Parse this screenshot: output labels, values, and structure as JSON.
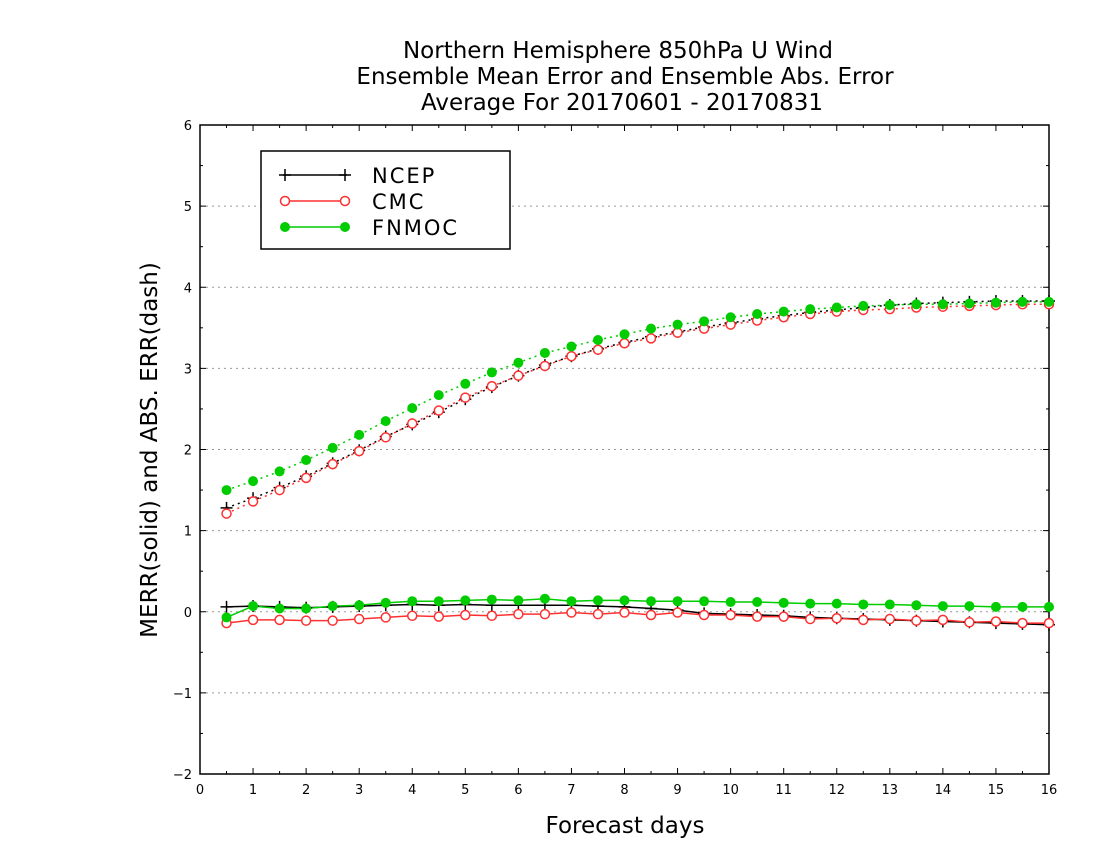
{
  "chart_data": {
    "type": "line",
    "title_lines": [
      "Northern Hemisphere 850hPa U Wind",
      "Ensemble Mean Error and Ensemble Abs. Error",
      "Average For 20170601 - 20170831"
    ],
    "xlabel": "Forecast days",
    "ylabel": "MERR(solid) and ABS. ERR(dash)",
    "xlim": [
      0,
      16
    ],
    "ylim": [
      -2,
      6
    ],
    "x_ticks": [
      "0",
      "1",
      "2",
      "3",
      "4",
      "5",
      "6",
      "7",
      "8",
      "9",
      "10",
      "11",
      "12",
      "13",
      "14",
      "15",
      "16"
    ],
    "y_ticks": [
      "-2",
      "-1",
      "0",
      "1",
      "2",
      "3",
      "4",
      "5",
      "6"
    ],
    "grid": "horizontal dotted",
    "legend_position": "top-left",
    "x": [
      0.5,
      1,
      1.5,
      2,
      2.5,
      3,
      3.5,
      4,
      4.5,
      5,
      5.5,
      6,
      6.5,
      7,
      7.5,
      8,
      8.5,
      9,
      9.5,
      10,
      10.5,
      11,
      11.5,
      12,
      12.5,
      13,
      13.5,
      14,
      14.5,
      15,
      15.5,
      16
    ],
    "series": [
      {
        "name": "NCEP",
        "color": "#000000",
        "marker": "plus",
        "merr": [
          0.06,
          0.07,
          0.06,
          0.05,
          0.06,
          0.07,
          0.08,
          0.09,
          0.08,
          0.09,
          0.08,
          0.08,
          0.08,
          0.08,
          0.07,
          0.06,
          0.04,
          0.02,
          -0.02,
          -0.03,
          -0.04,
          -0.05,
          -0.07,
          -0.08,
          -0.09,
          -0.1,
          -0.11,
          -0.12,
          -0.13,
          -0.14,
          -0.15,
          -0.16
        ],
        "abs_err": [
          1.28,
          1.4,
          1.53,
          1.67,
          1.83,
          1.99,
          2.16,
          2.31,
          2.46,
          2.62,
          2.77,
          2.91,
          3.04,
          3.15,
          3.24,
          3.32,
          3.39,
          3.45,
          3.51,
          3.56,
          3.61,
          3.65,
          3.69,
          3.72,
          3.75,
          3.78,
          3.8,
          3.81,
          3.82,
          3.83,
          3.83,
          3.83
        ]
      },
      {
        "name": "CMC",
        "color": "#ff3030",
        "marker": "open-circle",
        "merr": [
          -0.14,
          -0.1,
          -0.1,
          -0.11,
          -0.11,
          -0.09,
          -0.07,
          -0.05,
          -0.06,
          -0.04,
          -0.05,
          -0.03,
          -0.03,
          -0.01,
          -0.03,
          -0.01,
          -0.04,
          -0.01,
          -0.04,
          -0.04,
          -0.06,
          -0.06,
          -0.09,
          -0.08,
          -0.1,
          -0.09,
          -0.11,
          -0.1,
          -0.13,
          -0.12,
          -0.14,
          -0.14
        ],
        "abs_err": [
          1.21,
          1.36,
          1.5,
          1.65,
          1.82,
          1.98,
          2.15,
          2.32,
          2.48,
          2.64,
          2.78,
          2.91,
          3.03,
          3.15,
          3.23,
          3.31,
          3.37,
          3.44,
          3.49,
          3.54,
          3.59,
          3.63,
          3.67,
          3.7,
          3.72,
          3.73,
          3.75,
          3.76,
          3.77,
          3.78,
          3.79,
          3.79
        ]
      },
      {
        "name": "FNMOC",
        "color": "#00cc00",
        "marker": "filled-circle",
        "merr": [
          -0.07,
          0.07,
          0.04,
          0.04,
          0.07,
          0.08,
          0.11,
          0.13,
          0.13,
          0.14,
          0.15,
          0.14,
          0.16,
          0.13,
          0.14,
          0.14,
          0.13,
          0.13,
          0.13,
          0.12,
          0.12,
          0.11,
          0.1,
          0.1,
          0.09,
          0.09,
          0.08,
          0.07,
          0.07,
          0.06,
          0.06,
          0.06
        ],
        "abs_err": [
          1.5,
          1.61,
          1.73,
          1.87,
          2.02,
          2.18,
          2.35,
          2.51,
          2.67,
          2.81,
          2.95,
          3.07,
          3.19,
          3.27,
          3.35,
          3.42,
          3.49,
          3.54,
          3.58,
          3.63,
          3.67,
          3.7,
          3.73,
          3.75,
          3.77,
          3.78,
          3.79,
          3.79,
          3.8,
          3.81,
          3.82,
          3.82
        ]
      }
    ]
  }
}
